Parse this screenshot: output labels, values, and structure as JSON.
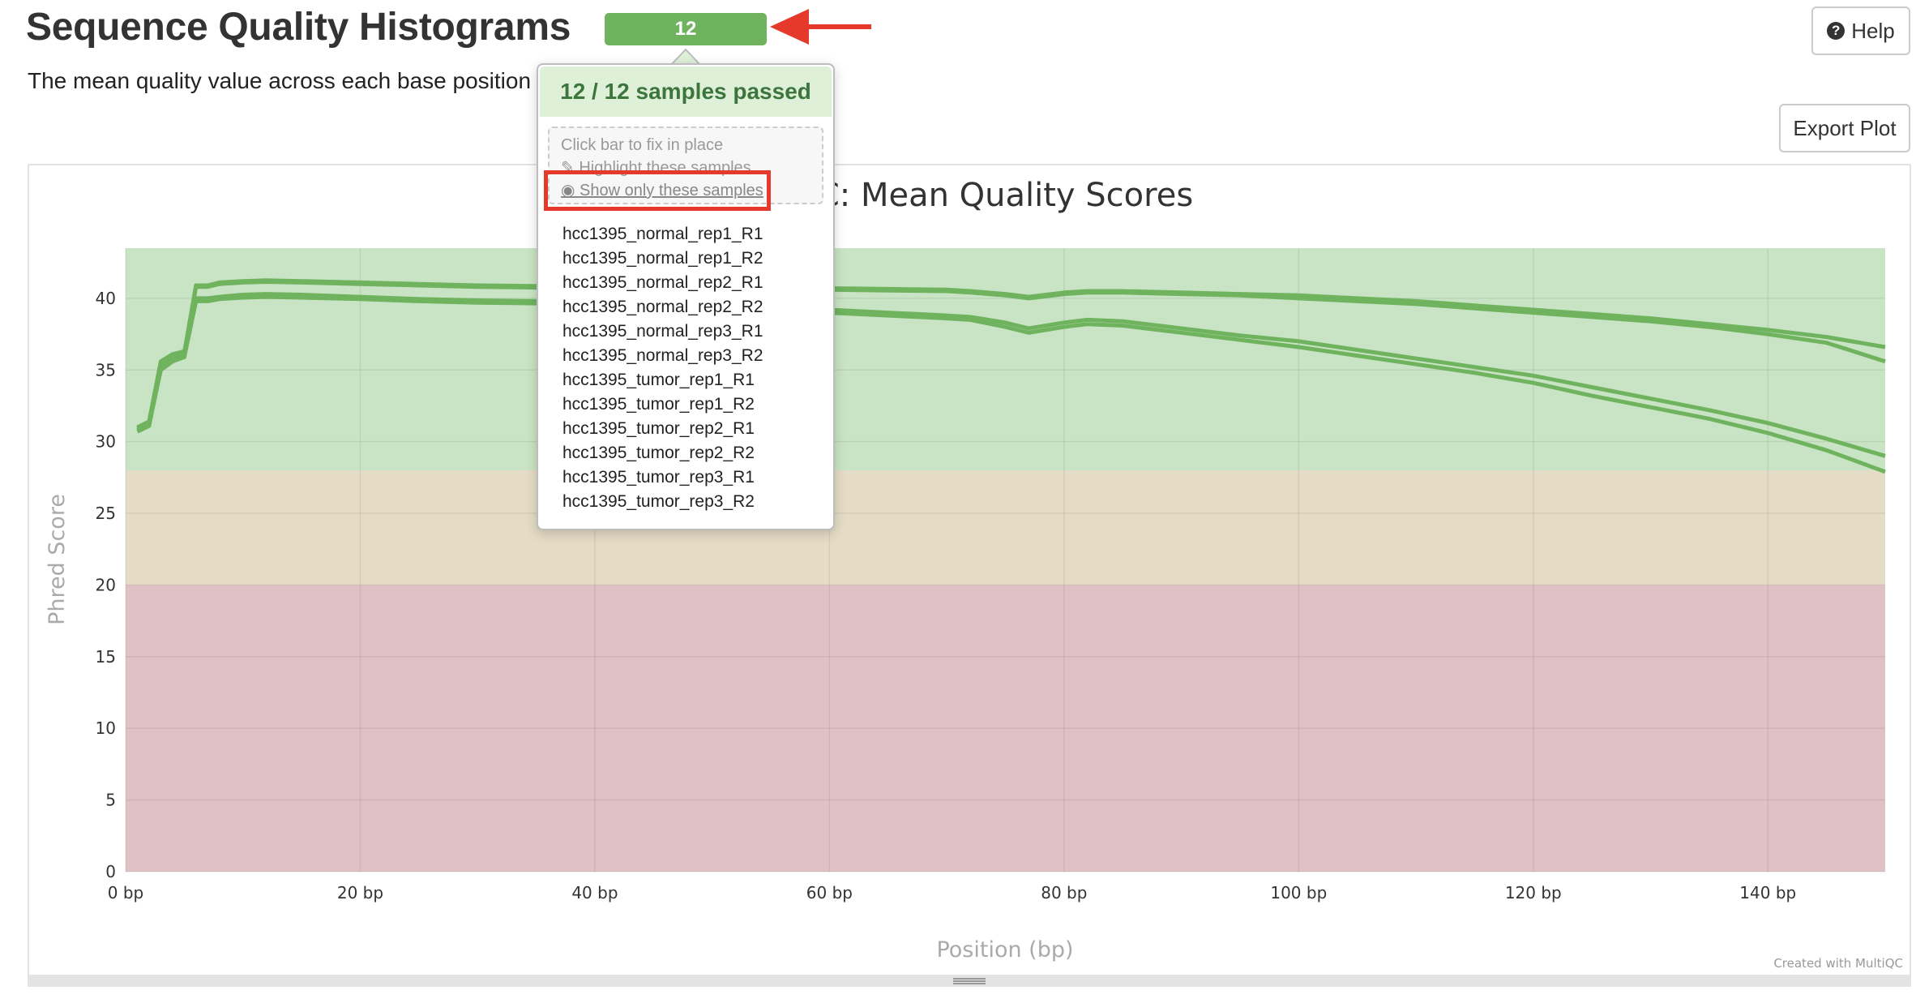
{
  "header": {
    "title": "Sequence Quality Histograms",
    "subtitle": "The mean quality value across each base position",
    "status_count": "12",
    "help_label": "Help",
    "export_label": "Export Plot"
  },
  "popover": {
    "header": "12 / 12 samples passed",
    "hint": "Click bar to fix in place",
    "highlight_label": "Highlight these samples",
    "show_only_label": "Show only these samples",
    "samples": [
      "hcc1395_normal_rep1_R1",
      "hcc1395_normal_rep1_R2",
      "hcc1395_normal_rep2_R1",
      "hcc1395_normal_rep2_R2",
      "hcc1395_normal_rep3_R1",
      "hcc1395_normal_rep3_R2",
      "hcc1395_tumor_rep1_R1",
      "hcc1395_tumor_rep1_R2",
      "hcc1395_tumor_rep2_R1",
      "hcc1395_tumor_rep2_R2",
      "hcc1395_tumor_rep3_R1",
      "hcc1395_tumor_rep3_R2"
    ]
  },
  "colors": {
    "line": "#6fb35f",
    "zone_good": "#c9e4c4",
    "zone_warn": "#e5dcc6",
    "zone_fail": "#e0c2c5",
    "annotation": "#e53a2b"
  },
  "chart_data": {
    "type": "line",
    "title": "FastQC: Mean Quality Scores",
    "title_visible": "C: Mean Quality Scores",
    "xlabel": "Position (bp)",
    "ylabel": "Phred Score",
    "xlim": [
      0,
      150
    ],
    "ylim": [
      0,
      43.5
    ],
    "x_ticks": [
      0,
      20,
      40,
      60,
      80,
      100,
      120,
      140
    ],
    "x_tick_labels": [
      "0 bp",
      "20 bp",
      "40 bp",
      "60 bp",
      "80 bp",
      "100 bp",
      "120 bp",
      "140 bp"
    ],
    "y_ticks": [
      0,
      5,
      10,
      15,
      20,
      25,
      30,
      35,
      40
    ],
    "y_tick_labels": [
      "0",
      "5",
      "10",
      "15",
      "20",
      "25",
      "30",
      "35",
      "40"
    ],
    "zones": [
      {
        "name": "good",
        "from": 28,
        "to": 43.5
      },
      {
        "name": "warning",
        "from": 20,
        "to": 28
      },
      {
        "name": "fail",
        "from": 0,
        "to": 20
      }
    ],
    "credit": "Created with MultiQC",
    "series": [
      {
        "x": [
          1,
          2,
          3,
          4,
          5,
          6,
          7,
          8,
          10,
          12,
          15,
          20,
          25,
          30,
          35,
          40,
          45,
          50,
          55,
          60,
          65,
          70,
          72,
          75,
          77,
          80,
          82,
          85,
          90,
          95,
          100,
          105,
          110,
          115,
          120,
          125,
          130,
          135,
          140,
          145,
          150
        ],
        "y": [
          30.9,
          31.3,
          35.4,
          35.9,
          36.2,
          40.9,
          40.9,
          41.1,
          41.2,
          41.25,
          41.2,
          41.1,
          41.0,
          40.9,
          40.85,
          40.8,
          40.8,
          40.75,
          40.75,
          40.7,
          40.65,
          40.6,
          40.5,
          40.3,
          40.1,
          40.4,
          40.5,
          40.5,
          40.4,
          40.3,
          40.2,
          40.0,
          39.8,
          39.5,
          39.2,
          38.9,
          38.6,
          38.2,
          37.8,
          37.3,
          36.6
        ]
      },
      {
        "x": [
          1,
          2,
          3,
          4,
          5,
          6,
          7,
          8,
          10,
          12,
          15,
          20,
          25,
          30,
          35,
          40,
          45,
          50,
          55,
          60,
          65,
          70,
          72,
          75,
          77,
          80,
          82,
          85,
          90,
          95,
          100,
          105,
          110,
          115,
          120,
          125,
          130,
          135,
          140,
          145,
          150
        ],
        "y": [
          30.7,
          31.1,
          35.1,
          35.6,
          36.0,
          40.8,
          40.8,
          41.0,
          41.1,
          41.15,
          41.1,
          41.0,
          40.9,
          40.8,
          40.75,
          40.7,
          40.7,
          40.65,
          40.65,
          40.6,
          40.55,
          40.5,
          40.4,
          40.2,
          40.0,
          40.3,
          40.4,
          40.4,
          40.3,
          40.2,
          40.0,
          39.8,
          39.6,
          39.3,
          39.0,
          38.7,
          38.4,
          38.0,
          37.5,
          36.9,
          35.6
        ]
      },
      {
        "x": [
          1,
          2,
          3,
          4,
          5,
          6,
          7,
          8,
          10,
          12,
          15,
          20,
          25,
          30,
          35,
          40,
          45,
          50,
          55,
          60,
          65,
          70,
          72,
          75,
          77,
          80,
          82,
          85,
          90,
          95,
          100,
          105,
          110,
          115,
          120,
          125,
          130,
          135,
          140,
          145,
          150
        ],
        "y": [
          31.0,
          31.4,
          35.6,
          36.1,
          36.3,
          40.0,
          40.0,
          40.1,
          40.25,
          40.3,
          40.25,
          40.1,
          39.95,
          39.85,
          39.8,
          39.7,
          39.6,
          39.5,
          39.3,
          39.2,
          39.0,
          38.8,
          38.7,
          38.3,
          37.9,
          38.3,
          38.5,
          38.4,
          37.9,
          37.4,
          37.0,
          36.4,
          35.8,
          35.2,
          34.6,
          33.8,
          33.0,
          32.2,
          31.3,
          30.2,
          29.0
        ]
      },
      {
        "x": [
          1,
          2,
          3,
          4,
          5,
          6,
          7,
          8,
          10,
          12,
          15,
          20,
          25,
          30,
          35,
          40,
          45,
          50,
          55,
          60,
          65,
          70,
          72,
          75,
          77,
          80,
          82,
          85,
          90,
          95,
          100,
          105,
          110,
          115,
          120,
          125,
          130,
          135,
          140,
          145,
          150
        ],
        "y": [
          30.8,
          31.2,
          35.0,
          35.6,
          35.9,
          39.8,
          39.8,
          39.95,
          40.05,
          40.1,
          40.05,
          39.95,
          39.8,
          39.7,
          39.65,
          39.5,
          39.4,
          39.3,
          39.1,
          39.0,
          38.8,
          38.6,
          38.5,
          38.0,
          37.6,
          38.0,
          38.2,
          38.1,
          37.6,
          37.1,
          36.6,
          36.0,
          35.4,
          34.8,
          34.1,
          33.2,
          32.4,
          31.6,
          30.6,
          29.4,
          27.9
        ]
      }
    ]
  }
}
